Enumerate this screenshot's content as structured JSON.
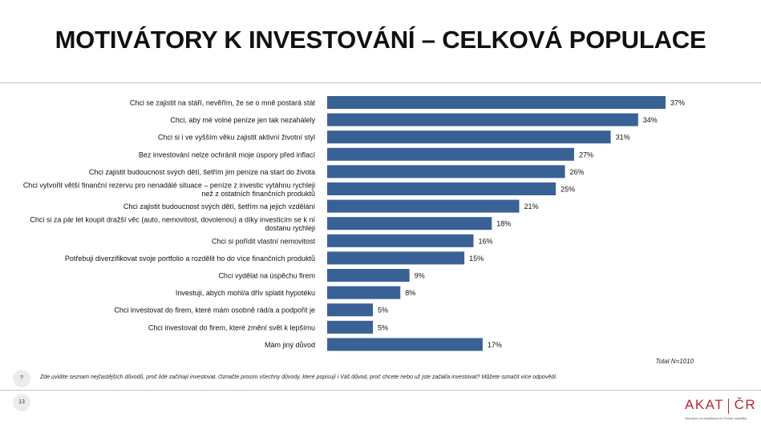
{
  "title": "MOTIVÁTORY K INVESTOVÁNÍ – CELKOVÁ POPULACE",
  "chart_data": {
    "type": "bar",
    "orientation": "horizontal",
    "categories": [
      [
        "Chci se zajistit na stáří, nevěřím, že se o mně postará stát"
      ],
      [
        "Chci, aby mé volné peníze jen tak nezahálely"
      ],
      [
        "Chci si i ve vyšším věku zajistit aktivní životní styl"
      ],
      [
        "Bez investování nelze ochránit moje úspory před inflací"
      ],
      [
        "Chci zajistit budoucnost svých dětí, šetřím jim peníze na start do života"
      ],
      [
        "Chci vytvořit větší finanční rezervu pro nenadálé situace – peníze z investic vytáhnu rychleji",
        "než z ostatních finančních produktů"
      ],
      [
        "Chci zajistit budoucnost svých dětí, šetřím na jejich vzdělání"
      ],
      [
        "Chci si za pár let koupit dražší věc (auto, nemovitost, dovolenou) a díky investicím se k ní",
        "dostanu rychleji"
      ],
      [
        "Chci si pořídit vlastní nemovitost"
      ],
      [
        "Potřebuji diverzifikovat svoje portfolio a rozdělit ho do více finančních produktů"
      ],
      [
        "Chci vydělat na úspěchu firem"
      ],
      [
        "Investuji, abych mohl/a dřív splatit hypotéku"
      ],
      [
        "Chci investovat do firem, které mám osobně rád/a a podpořit je"
      ],
      [
        "Chci investovat do firem, které změní svět k lepšímu"
      ],
      [
        "Mám jiný důvod"
      ]
    ],
    "values": [
      37,
      34,
      31,
      27,
      26,
      25,
      21,
      18,
      16,
      15,
      9,
      8,
      5,
      5,
      17
    ],
    "value_labels": [
      "37%",
      "34%",
      "31%",
      "27%",
      "26%",
      "25%",
      "21%",
      "18%",
      "16%",
      "15%",
      "9%",
      "8%",
      "5%",
      "5%",
      "17%"
    ],
    "unit": "%",
    "xlim": [
      0,
      37
    ],
    "grid": false,
    "bar_color": "#3a6196",
    "note": "Total N=1010"
  },
  "question_badge": "?",
  "question_text": "Zde uvidíte seznam nejčastějších důvodů, proč lidé začínají investovat. Označte prosím všechny důvody, které popisují i Váš důvod, proč chcete nebo už jste začal/a investovat?  Můžete označit více odpovědí.",
  "page_number": "13",
  "logo": {
    "left": "AKAT",
    "right": "ČR",
    "subtitle": "Asociace pro kapitálový trh České republiky",
    "color": "#b7282e"
  }
}
